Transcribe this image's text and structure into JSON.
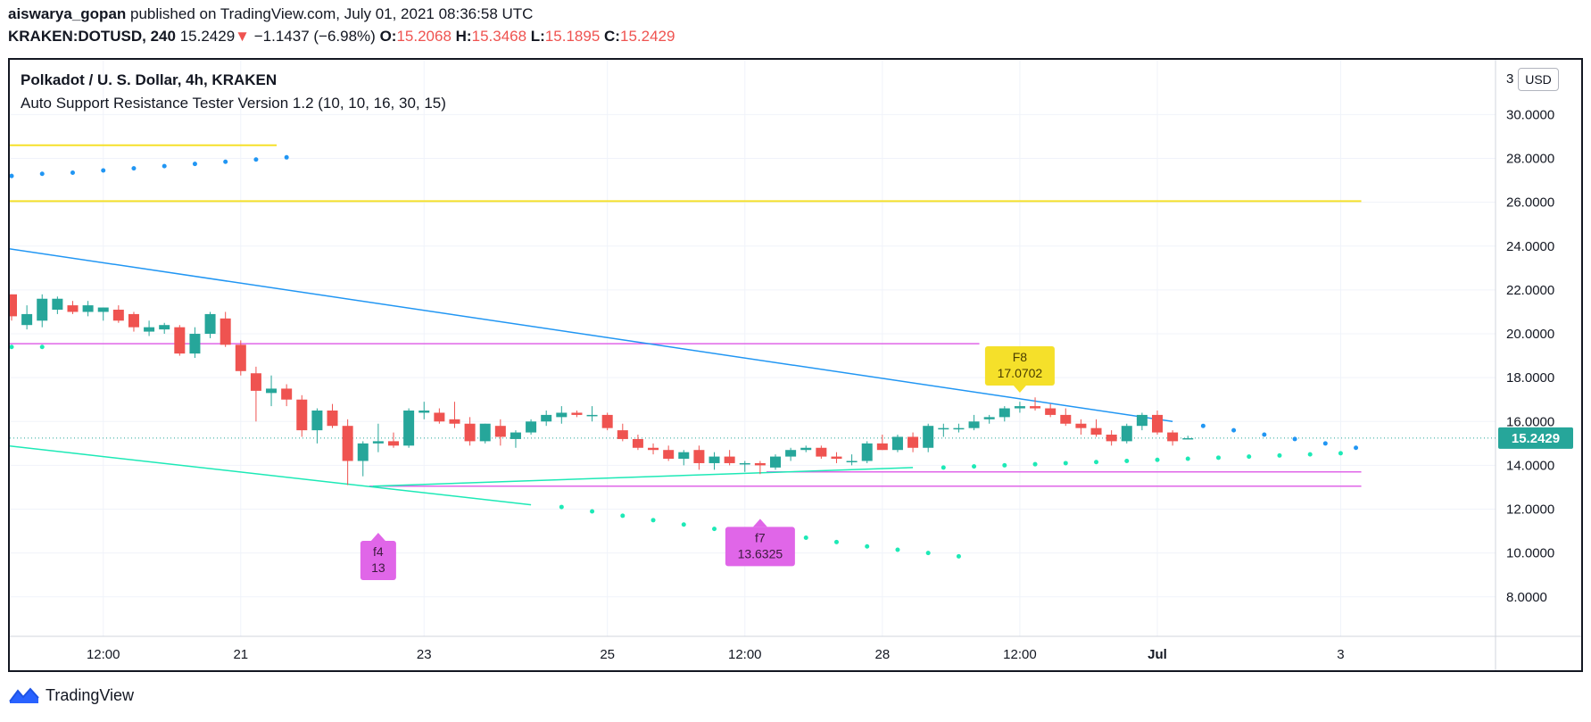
{
  "header": {
    "author": "aiswarya_gopan",
    "published": "published on TradingView.com, July 01, 2021 08:36:58 UTC",
    "symbol": "KRAKEN:DOTUSD, 240",
    "last": "15.2429",
    "arrow": "▼",
    "change": "−1.1437 (−6.98%)",
    "o_label": "O:",
    "o": "15.2068",
    "h_label": "H:",
    "h": "15.3468",
    "l_label": "L:",
    "l": "15.1895",
    "c_label": "C:",
    "c": "15.2429"
  },
  "legend": {
    "series_title": "Polkadot / U. S. Dollar, 4h, KRAKEN",
    "indicator": "Auto Support Resistance Tester Version 1.2 (10, 10, 16, 30, 15)"
  },
  "currency_button": "USD",
  "price_axis_top_label": "3",
  "footer": {
    "brand": "TradingView"
  },
  "colors": {
    "up": "#26a69a",
    "down": "#ef5350",
    "yellow": "#f5e02a",
    "magenta": "#e066e8",
    "blue": "#2196f3",
    "green": "#1de9b6",
    "axis_text": "#131722",
    "grid": "#f0f3fa"
  },
  "chart_data": {
    "type": "candlestick",
    "title": "Polkadot / U. S. Dollar, 4h, KRAKEN",
    "ylim": [
      6.2,
      32.5
    ],
    "y_ticks": [
      "30.0000",
      "28.0000",
      "26.0000",
      "24.0000",
      "22.0000",
      "20.0000",
      "18.0000",
      "16.0000",
      "14.0000",
      "12.0000",
      "10.0000",
      "8.0000"
    ],
    "x_ticks": [
      {
        "label": "12:00",
        "bar": 6
      },
      {
        "label": "21",
        "bar": 15
      },
      {
        "label": "23",
        "bar": 27
      },
      {
        "label": "25",
        "bar": 39
      },
      {
        "label": "12:00",
        "bar": 48
      },
      {
        "label": "28",
        "bar": 57
      },
      {
        "label": "12:00",
        "bar": 66
      },
      {
        "label": "Jul",
        "bar": 75
      },
      {
        "label": "3",
        "bar": 87
      }
    ],
    "current_price": "15.2429",
    "candles": [
      [
        21.8,
        21.8,
        20.6,
        20.8
      ],
      [
        20.4,
        21.3,
        20.2,
        20.9
      ],
      [
        20.6,
        21.8,
        20.3,
        21.6
      ],
      [
        21.1,
        21.7,
        20.9,
        21.6
      ],
      [
        21.3,
        21.5,
        20.9,
        21.0
      ],
      [
        21.0,
        21.5,
        20.8,
        21.3
      ],
      [
        21.0,
        21.2,
        20.6,
        21.2
      ],
      [
        21.1,
        21.3,
        20.5,
        20.6
      ],
      [
        20.9,
        21.0,
        20.1,
        20.3
      ],
      [
        20.1,
        20.6,
        19.9,
        20.3
      ],
      [
        20.2,
        20.5,
        20.0,
        20.4
      ],
      [
        20.3,
        20.4,
        19.0,
        19.1
      ],
      [
        19.1,
        20.3,
        18.9,
        20.0
      ],
      [
        20.0,
        21.0,
        19.8,
        20.9
      ],
      [
        20.7,
        21.0,
        19.4,
        19.5
      ],
      [
        19.5,
        19.7,
        18.1,
        18.3
      ],
      [
        18.2,
        18.5,
        16.0,
        17.4
      ],
      [
        17.3,
        18.1,
        16.7,
        17.5
      ],
      [
        17.5,
        17.7,
        16.7,
        17.0
      ],
      [
        17.0,
        17.2,
        15.3,
        15.6
      ],
      [
        15.6,
        16.6,
        15.0,
        16.5
      ],
      [
        16.5,
        16.8,
        15.7,
        15.8
      ],
      [
        15.8,
        16.1,
        13.1,
        14.2
      ],
      [
        14.2,
        15.1,
        13.5,
        15.0
      ],
      [
        15.0,
        15.9,
        14.6,
        15.1
      ],
      [
        15.1,
        15.5,
        14.8,
        14.9
      ],
      [
        14.9,
        16.6,
        14.8,
        16.5
      ],
      [
        16.4,
        16.9,
        16.1,
        16.5
      ],
      [
        16.4,
        16.6,
        15.9,
        16.0
      ],
      [
        16.1,
        16.9,
        15.7,
        15.9
      ],
      [
        15.9,
        16.2,
        14.9,
        15.1
      ],
      [
        15.1,
        15.9,
        15.0,
        15.9
      ],
      [
        15.8,
        16.1,
        14.9,
        15.3
      ],
      [
        15.2,
        15.6,
        14.8,
        15.5
      ],
      [
        15.5,
        16.1,
        15.4,
        16.0
      ],
      [
        16.0,
        16.5,
        15.8,
        16.3
      ],
      [
        16.2,
        16.7,
        15.9,
        16.4
      ],
      [
        16.4,
        16.5,
        16.2,
        16.3
      ],
      [
        16.3,
        16.7,
        16.0,
        16.3
      ],
      [
        16.3,
        16.4,
        15.6,
        15.7
      ],
      [
        15.6,
        15.9,
        15.1,
        15.2
      ],
      [
        15.2,
        15.4,
        14.7,
        14.8
      ],
      [
        14.8,
        15.0,
        14.5,
        14.7
      ],
      [
        14.7,
        14.9,
        14.2,
        14.3
      ],
      [
        14.3,
        14.7,
        14.0,
        14.6
      ],
      [
        14.7,
        14.9,
        13.8,
        14.1
      ],
      [
        14.1,
        14.6,
        13.8,
        14.4
      ],
      [
        14.4,
        14.7,
        14.0,
        14.1
      ],
      [
        14.1,
        14.2,
        13.7,
        14.1
      ],
      [
        14.1,
        14.2,
        13.6,
        14.0
      ],
      [
        13.9,
        14.5,
        13.8,
        14.4
      ],
      [
        14.4,
        14.8,
        14.2,
        14.7
      ],
      [
        14.7,
        14.9,
        14.6,
        14.8
      ],
      [
        14.8,
        14.9,
        14.3,
        14.4
      ],
      [
        14.4,
        14.6,
        14.1,
        14.3
      ],
      [
        14.2,
        14.5,
        14.0,
        14.2
      ],
      [
        14.2,
        15.1,
        14.1,
        15.0
      ],
      [
        15.0,
        15.4,
        14.7,
        14.7
      ],
      [
        14.7,
        15.4,
        14.6,
        15.3
      ],
      [
        15.3,
        15.5,
        14.6,
        14.8
      ],
      [
        14.8,
        15.9,
        14.6,
        15.8
      ],
      [
        15.7,
        15.9,
        15.3,
        15.7
      ],
      [
        15.7,
        15.9,
        15.5,
        15.7
      ],
      [
        15.7,
        16.3,
        15.6,
        16.0
      ],
      [
        16.1,
        16.3,
        15.9,
        16.2
      ],
      [
        16.2,
        16.7,
        16.0,
        16.6
      ],
      [
        16.6,
        16.9,
        16.4,
        16.7
      ],
      [
        16.7,
        17.1,
        16.5,
        16.6
      ],
      [
        16.6,
        16.8,
        16.2,
        16.3
      ],
      [
        16.3,
        16.6,
        15.8,
        15.9
      ],
      [
        15.9,
        16.1,
        15.4,
        15.7
      ],
      [
        15.7,
        16.1,
        15.3,
        15.4
      ],
      [
        15.4,
        15.6,
        14.9,
        15.1
      ],
      [
        15.1,
        15.9,
        15.0,
        15.8
      ],
      [
        15.8,
        16.4,
        15.6,
        16.3
      ],
      [
        16.3,
        16.5,
        15.4,
        15.5
      ],
      [
        15.5,
        15.6,
        14.9,
        15.1
      ],
      [
        15.2,
        15.35,
        15.19,
        15.24
      ]
    ],
    "support_resistance_lines": [
      {
        "color": "yellow",
        "price": 28.6,
        "from_bar": 0,
        "to_bar": 17
      },
      {
        "color": "yellow",
        "price": 26.05,
        "from_bar": 0,
        "to_bar": 88
      },
      {
        "color": "magenta",
        "price": 19.55,
        "from_bar": 0,
        "to_bar": 63
      },
      {
        "color": "magenta",
        "price": 13.7,
        "from_bar": 50,
        "to_bar": 88
      },
      {
        "color": "magenta",
        "price": 13.05,
        "from_bar": 24,
        "to_bar": 88
      }
    ],
    "trend_lines": [
      {
        "color": "blue",
        "from": [
          0,
          23.9
        ],
        "to": [
          76,
          16.0
        ]
      },
      {
        "color": "green",
        "from": [
          0,
          14.9
        ],
        "to": [
          34,
          12.2
        ]
      },
      {
        "color": "green",
        "from": [
          24,
          13.05
        ],
        "to": [
          59,
          13.9
        ]
      }
    ],
    "dot_series": [
      {
        "color": "blue",
        "points": [
          [
            0,
            27.2
          ],
          [
            2,
            27.3
          ],
          [
            4,
            27.35
          ],
          [
            6,
            27.45
          ],
          [
            8,
            27.55
          ],
          [
            10,
            27.65
          ],
          [
            12,
            27.75
          ],
          [
            14,
            27.85
          ],
          [
            16,
            27.95
          ],
          [
            18,
            28.05
          ]
        ]
      },
      {
        "color": "blue",
        "points": [
          [
            78,
            15.8
          ],
          [
            80,
            15.6
          ],
          [
            82,
            15.4
          ],
          [
            84,
            15.2
          ],
          [
            86,
            15.0
          ],
          [
            88,
            14.8
          ]
        ]
      },
      {
        "color": "green",
        "points": [
          [
            0,
            19.4
          ],
          [
            2,
            19.4
          ]
        ]
      },
      {
        "color": "green",
        "points": [
          [
            36,
            12.1
          ],
          [
            38,
            11.9
          ],
          [
            40,
            11.7
          ],
          [
            42,
            11.5
          ],
          [
            44,
            11.3
          ],
          [
            46,
            11.1
          ],
          [
            48,
            10.95
          ],
          [
            50,
            10.9
          ],
          [
            52,
            10.7
          ],
          [
            54,
            10.5
          ],
          [
            56,
            10.3
          ],
          [
            58,
            10.15
          ],
          [
            60,
            10.0
          ],
          [
            62,
            9.85
          ]
        ]
      },
      {
        "color": "green",
        "points": [
          [
            61,
            13.9
          ],
          [
            63,
            13.95
          ],
          [
            65,
            14.0
          ],
          [
            67,
            14.05
          ],
          [
            69,
            14.1
          ],
          [
            71,
            14.15
          ],
          [
            73,
            14.2
          ],
          [
            75,
            14.25
          ],
          [
            77,
            14.3
          ],
          [
            79,
            14.35
          ],
          [
            81,
            14.4
          ],
          [
            83,
            14.45
          ],
          [
            85,
            14.5
          ],
          [
            87,
            14.55
          ]
        ]
      }
    ],
    "labels": [
      {
        "name": "F8",
        "text1": "F8",
        "text2": "17.0702",
        "price": 17.0702,
        "bar": 66,
        "color": "yellow",
        "direction": "down"
      },
      {
        "name": "f4",
        "text1": "f4",
        "text2": "13",
        "price": 13.0,
        "bar": 24,
        "color": "magenta",
        "direction": "up"
      },
      {
        "name": "f7",
        "text1": "f7",
        "text2": "13.6325",
        "price": 13.6325,
        "bar": 49,
        "color": "magenta",
        "direction": "up"
      }
    ]
  }
}
